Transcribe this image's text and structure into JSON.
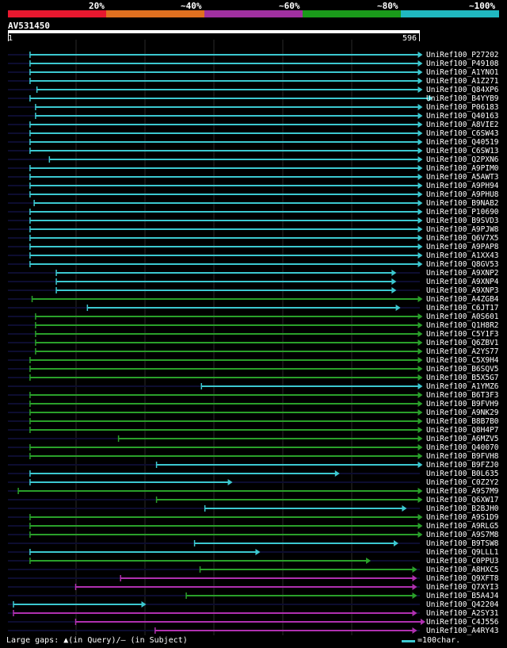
{
  "legend": {
    "labels": [
      "20%",
      "~40%",
      "~60%",
      "~80%",
      "~100%"
    ],
    "colors": [
      "#e8182f",
      "#e07020",
      "#a030a0",
      "#1a9a1a",
      "#20b8c0"
    ]
  },
  "query": {
    "name": "AV531450",
    "start": "1",
    "end": "596",
    "length": 596
  },
  "colors": {
    "cyan": "#3cc8d0",
    "green": "#2aa02a",
    "magenta": "#b030b0",
    "row_line": "#0d0d30",
    "grid": "#2a2a2a"
  },
  "hits": [
    {
      "id": "UniRef100_P27202",
      "c": "cyan",
      "s": 32,
      "e": 600
    },
    {
      "id": "UniRef100_P49108",
      "c": "cyan",
      "s": 32,
      "e": 600
    },
    {
      "id": "UniRef100_A1YNO1",
      "c": "cyan",
      "s": 32,
      "e": 600
    },
    {
      "id": "UniRef100_A1Z271",
      "c": "cyan",
      "s": 32,
      "e": 600
    },
    {
      "id": "UniRef100_Q84XP6",
      "c": "cyan",
      "s": 42,
      "e": 600
    },
    {
      "id": "UniRef100_B4YYB9",
      "c": "cyan",
      "s": 32,
      "e": 615
    },
    {
      "id": "UniRef100_P06183",
      "c": "cyan",
      "s": 40,
      "e": 600
    },
    {
      "id": "UniRef100_Q40163",
      "c": "cyan",
      "s": 40,
      "e": 600
    },
    {
      "id": "UniRef100_A8VIE2",
      "c": "cyan",
      "s": 32,
      "e": 600
    },
    {
      "id": "UniRef100_C6SW43",
      "c": "cyan",
      "s": 32,
      "e": 600
    },
    {
      "id": "UniRef100_Q40519",
      "c": "cyan",
      "s": 32,
      "e": 600
    },
    {
      "id": "UniRef100_C6SW13",
      "c": "cyan",
      "s": 32,
      "e": 600
    },
    {
      "id": "UniRef100_Q2PXN6",
      "c": "cyan",
      "s": 60,
      "e": 600
    },
    {
      "id": "UniRef100_A9PIM0",
      "c": "cyan",
      "s": 32,
      "e": 600
    },
    {
      "id": "UniRef100_A5AWT3",
      "c": "cyan",
      "s": 32,
      "e": 600
    },
    {
      "id": "UniRef100_A9PH94",
      "c": "cyan",
      "s": 32,
      "e": 600
    },
    {
      "id": "UniRef100_A9PHU8",
      "c": "cyan",
      "s": 32,
      "e": 600
    },
    {
      "id": "UniRef100_B9NAB2",
      "c": "cyan",
      "s": 38,
      "e": 600
    },
    {
      "id": "UniRef100_P10690",
      "c": "cyan",
      "s": 32,
      "e": 600
    },
    {
      "id": "UniRef100_B9SVD3",
      "c": "cyan",
      "s": 32,
      "e": 600
    },
    {
      "id": "UniRef100_A9PJW8",
      "c": "cyan",
      "s": 32,
      "e": 600
    },
    {
      "id": "UniRef100_Q6V7X5",
      "c": "cyan",
      "s": 32,
      "e": 600
    },
    {
      "id": "UniRef100_A9PAP8",
      "c": "cyan",
      "s": 32,
      "e": 600
    },
    {
      "id": "UniRef100_A1XX43",
      "c": "cyan",
      "s": 32,
      "e": 600
    },
    {
      "id": "UniRef100_Q8GV53",
      "c": "cyan",
      "s": 32,
      "e": 600
    },
    {
      "id": "UniRef100_A9XNP2",
      "c": "cyan",
      "s": 70,
      "e": 562
    },
    {
      "id": "UniRef100_A9XNP4",
      "c": "cyan",
      "s": 70,
      "e": 562
    },
    {
      "id": "UniRef100_A9XNP3",
      "c": "cyan",
      "s": 70,
      "e": 562
    },
    {
      "id": "UniRef100_A4ZGB4",
      "c": "green",
      "s": 35,
      "e": 600
    },
    {
      "id": "UniRef100_C6JT17",
      "c": "cyan",
      "s": 115,
      "e": 568
    },
    {
      "id": "UniRef100_A0S601",
      "c": "green",
      "s": 40,
      "e": 600
    },
    {
      "id": "UniRef100_Q1H8R2",
      "c": "green",
      "s": 40,
      "e": 600
    },
    {
      "id": "UniRef100_C5Y1F3",
      "c": "green",
      "s": 40,
      "e": 600
    },
    {
      "id": "UniRef100_Q6ZBV1",
      "c": "green",
      "s": 40,
      "e": 600
    },
    {
      "id": "UniRef100_A2YS77",
      "c": "green",
      "s": 40,
      "e": 600
    },
    {
      "id": "UniRef100_C5X9H4",
      "c": "green",
      "s": 32,
      "e": 600
    },
    {
      "id": "UniRef100_B6SQV5",
      "c": "green",
      "s": 32,
      "e": 600
    },
    {
      "id": "UniRef100_B5X5G7",
      "c": "green",
      "s": 32,
      "e": 600
    },
    {
      "id": "UniRef100_A1YMZ6",
      "c": "cyan",
      "s": 280,
      "e": 600
    },
    {
      "id": "UniRef100_B6T3F3",
      "c": "green",
      "s": 32,
      "e": 600
    },
    {
      "id": "UniRef100_B9FVH9",
      "c": "green",
      "s": 32,
      "e": 600
    },
    {
      "id": "UniRef100_A9NK29",
      "c": "green",
      "s": 32,
      "e": 600
    },
    {
      "id": "UniRef100_B8B7B0",
      "c": "green",
      "s": 32,
      "e": 600
    },
    {
      "id": "UniRef100_Q8H4P7",
      "c": "green",
      "s": 32,
      "e": 600
    },
    {
      "id": "UniRef100_A6MZV5",
      "c": "green",
      "s": 160,
      "e": 600
    },
    {
      "id": "UniRef100_Q40070",
      "c": "green",
      "s": 32,
      "e": 600
    },
    {
      "id": "UniRef100_B9FVH8",
      "c": "green",
      "s": 32,
      "e": 600
    },
    {
      "id": "UniRef100_B9FZJ0",
      "c": "cyan",
      "s": 215,
      "e": 600
    },
    {
      "id": "UniRef100_B0L635",
      "c": "cyan",
      "s": 32,
      "e": 480
    },
    {
      "id": "UniRef100_C0Z2Y2",
      "c": "cyan",
      "s": 32,
      "e": 325
    },
    {
      "id": "UniRef100_A9S7M9",
      "c": "green",
      "s": 15,
      "e": 600
    },
    {
      "id": "UniRef100_Q6XW17",
      "c": "green",
      "s": 215,
      "e": 600
    },
    {
      "id": "UniRef100_B2BJH0",
      "c": "cyan",
      "s": 285,
      "e": 577
    },
    {
      "id": "UniRef100_A9S1D9",
      "c": "green",
      "s": 32,
      "e": 600
    },
    {
      "id": "UniRef100_A9RLG5",
      "c": "green",
      "s": 32,
      "e": 600
    },
    {
      "id": "UniRef100_A9S7M8",
      "c": "green",
      "s": 32,
      "e": 600
    },
    {
      "id": "UniRef100_B9TSW8",
      "c": "cyan",
      "s": 270,
      "e": 565
    },
    {
      "id": "UniRef100_Q9LLL1",
      "c": "cyan",
      "s": 32,
      "e": 365
    },
    {
      "id": "UniRef100_C0PPU3",
      "c": "green",
      "s": 32,
      "e": 525
    },
    {
      "id": "UniRef100_A8HXC5",
      "c": "green",
      "s": 278,
      "e": 592
    },
    {
      "id": "UniRef100_Q9XFT8",
      "c": "magenta",
      "s": 163,
      "e": 592
    },
    {
      "id": "UniRef100_Q7XYI3",
      "c": "magenta",
      "s": 98,
      "e": 592
    },
    {
      "id": "UniRef100_B5A4J4",
      "c": "green",
      "s": 258,
      "e": 592
    },
    {
      "id": "UniRef100_Q42204",
      "c": "cyan",
      "s": 8,
      "e": 200
    },
    {
      "id": "UniRef100_A2SY31",
      "c": "magenta",
      "s": 8,
      "e": 592
    },
    {
      "id": "UniRef100_C4J556",
      "c": "magenta",
      "s": 98,
      "e": 604
    },
    {
      "id": "UniRef100_A4RY43",
      "c": "magenta",
      "s": 213,
      "e": 592
    }
  ],
  "footer": {
    "text": "Large gaps: ▲(in Query)/– (in Subject)",
    "scale_label": "=100char."
  }
}
